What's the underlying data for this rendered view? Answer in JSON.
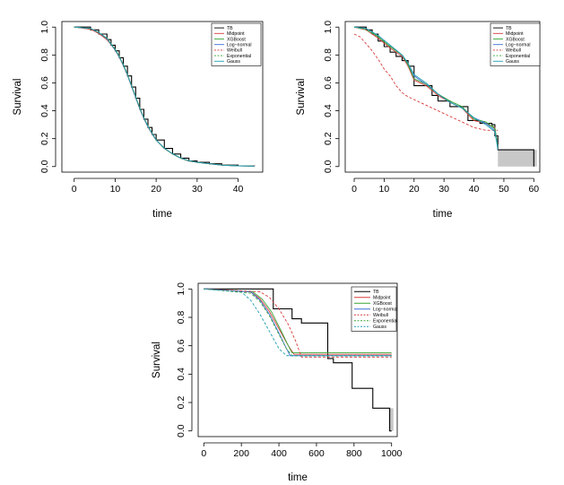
{
  "chart_data": [
    {
      "type": "line",
      "panel": "top-left",
      "xlabel": "time",
      "ylabel": "Survival",
      "xlim": [
        -3,
        46
      ],
      "ylim": [
        -0.04,
        1.04
      ],
      "xticks": [
        0,
        10,
        20,
        30,
        40
      ],
      "yticks": [
        0.0,
        0.2,
        0.4,
        0.6,
        0.8,
        1.0
      ],
      "legend_position": "top-right",
      "legend_layout": "short",
      "series": [
        {
          "name": "TB",
          "color": "#000000",
          "dash": "",
          "step": true,
          "x": [
            0,
            4,
            6,
            8,
            9,
            10,
            11,
            12,
            13,
            14,
            15,
            16,
            17,
            18,
            19,
            20,
            22,
            24,
            26,
            28,
            30,
            33,
            36,
            40,
            44
          ],
          "y": [
            1,
            0.98,
            0.95,
            0.91,
            0.87,
            0.83,
            0.78,
            0.72,
            0.65,
            0.57,
            0.49,
            0.41,
            0.34,
            0.28,
            0.23,
            0.19,
            0.13,
            0.09,
            0.06,
            0.04,
            0.03,
            0.02,
            0.01,
            0.005,
            0.003
          ]
        },
        {
          "name": "Midpoint",
          "color": "#d83a3a",
          "dash": "",
          "step": false,
          "x": [
            0,
            4,
            6,
            8,
            9,
            10,
            11,
            12,
            13,
            14,
            15,
            16,
            17,
            18,
            19,
            20,
            22,
            24,
            26,
            28,
            30,
            33,
            36,
            40,
            44
          ],
          "y": [
            1,
            0.985,
            0.955,
            0.91,
            0.875,
            0.835,
            0.785,
            0.725,
            0.655,
            0.575,
            0.495,
            0.415,
            0.345,
            0.285,
            0.235,
            0.19,
            0.13,
            0.09,
            0.06,
            0.04,
            0.03,
            0.02,
            0.01,
            0.005,
            0.003
          ]
        },
        {
          "name": "XGBoost",
          "color": "#3aa63a",
          "dash": "",
          "step": false,
          "x": [
            0,
            4,
            6,
            8,
            9,
            10,
            11,
            12,
            13,
            14,
            15,
            16,
            17,
            18,
            19,
            20,
            22,
            24,
            26,
            28,
            30,
            33,
            36,
            40,
            44
          ],
          "y": [
            1,
            0.99,
            0.96,
            0.92,
            0.88,
            0.84,
            0.79,
            0.73,
            0.66,
            0.58,
            0.5,
            0.42,
            0.35,
            0.29,
            0.24,
            0.19,
            0.13,
            0.09,
            0.06,
            0.04,
            0.03,
            0.02,
            0.01,
            0.005,
            0.003
          ]
        },
        {
          "name": "Log−normal",
          "color": "#3a6fd8",
          "dash": "",
          "step": false,
          "x": [
            0,
            4,
            6,
            8,
            9,
            10,
            11,
            12,
            13,
            14,
            15,
            16,
            17,
            18,
            19,
            20,
            22,
            24,
            26,
            28,
            30,
            33,
            36,
            40,
            44
          ],
          "y": [
            1,
            0.99,
            0.96,
            0.915,
            0.875,
            0.835,
            0.785,
            0.725,
            0.655,
            0.575,
            0.495,
            0.415,
            0.345,
            0.285,
            0.235,
            0.19,
            0.13,
            0.09,
            0.06,
            0.04,
            0.03,
            0.02,
            0.01,
            0.005,
            0.003
          ]
        },
        {
          "name": "Weibull",
          "color": "#d83a3a",
          "dash": "3,2",
          "step": false,
          "x": [
            0,
            4,
            6,
            8,
            9,
            10,
            11,
            12,
            13,
            14,
            15,
            16,
            17,
            18,
            19,
            20,
            22,
            24,
            26,
            28,
            30,
            33,
            36,
            40,
            44
          ],
          "y": [
            1,
            0.985,
            0.955,
            0.91,
            0.875,
            0.835,
            0.785,
            0.725,
            0.655,
            0.575,
            0.495,
            0.415,
            0.345,
            0.285,
            0.235,
            0.19,
            0.13,
            0.09,
            0.06,
            0.04,
            0.03,
            0.02,
            0.01,
            0.005,
            0.003
          ]
        },
        {
          "name": "Exponential",
          "color": "#3aa63a",
          "dash": "3,2",
          "step": false,
          "x": [
            0,
            4,
            6,
            8,
            9,
            10,
            11,
            12,
            13,
            14,
            15,
            16,
            17,
            18,
            19,
            20,
            22,
            24,
            26,
            28,
            30,
            33,
            36,
            40,
            44
          ],
          "y": [
            1,
            0.99,
            0.96,
            0.92,
            0.88,
            0.84,
            0.79,
            0.73,
            0.66,
            0.58,
            0.5,
            0.42,
            0.35,
            0.29,
            0.24,
            0.19,
            0.13,
            0.09,
            0.06,
            0.04,
            0.03,
            0.02,
            0.01,
            0.005,
            0.003
          ]
        },
        {
          "name": "Gauss",
          "color": "#1fa0b0",
          "dash": "",
          "step": false,
          "x": [
            0,
            4,
            6,
            8,
            9,
            10,
            11,
            12,
            13,
            14,
            15,
            16,
            17,
            18,
            19,
            20,
            22,
            24,
            26,
            28,
            30,
            33,
            36,
            40,
            44
          ],
          "y": [
            1,
            0.99,
            0.962,
            0.918,
            0.878,
            0.838,
            0.788,
            0.728,
            0.658,
            0.578,
            0.498,
            0.418,
            0.348,
            0.288,
            0.238,
            0.192,
            0.132,
            0.092,
            0.062,
            0.042,
            0.03,
            0.02,
            0.01,
            0.005,
            0.003
          ]
        }
      ]
    },
    {
      "type": "line",
      "panel": "top-right",
      "xlabel": "time",
      "ylabel": "Survival",
      "xlim": [
        -3,
        62
      ],
      "ylim": [
        -0.04,
        1.04
      ],
      "xticks": [
        0,
        10,
        20,
        30,
        40,
        50,
        60
      ],
      "yticks": [
        0.0,
        0.2,
        0.4,
        0.6,
        0.8,
        1.0
      ],
      "legend_position": "top-right",
      "legend_layout": "short",
      "band": {
        "x0": 48,
        "x1": 61,
        "y0": 0.0,
        "y1": 0.12,
        "color": "#c8c8c8"
      },
      "series": [
        {
          "name": "TB",
          "color": "#000000",
          "dash": "",
          "step": true,
          "x": [
            0,
            4,
            6,
            8,
            10,
            12,
            14,
            16,
            18,
            20,
            22,
            24,
            26,
            28,
            30,
            32,
            34,
            36,
            38,
            40,
            42,
            44,
            46,
            47,
            48,
            60
          ],
          "y": [
            1,
            0.98,
            0.95,
            0.9,
            0.86,
            0.82,
            0.79,
            0.76,
            0.72,
            0.58,
            0.58,
            0.58,
            0.51,
            0.47,
            0.47,
            0.43,
            0.43,
            0.43,
            0.33,
            0.33,
            0.31,
            0.31,
            0.3,
            0.22,
            0.12,
            0.0
          ]
        },
        {
          "name": "Midpoint",
          "color": "#d83a3a",
          "dash": "",
          "step": false,
          "x": [
            0,
            4,
            8,
            12,
            16,
            18,
            20,
            24,
            28,
            32,
            36,
            40,
            44,
            47,
            48
          ],
          "y": [
            1,
            0.98,
            0.92,
            0.85,
            0.79,
            0.72,
            0.62,
            0.58,
            0.51,
            0.46,
            0.42,
            0.33,
            0.31,
            0.28,
            0.13
          ]
        },
        {
          "name": "XGBoost",
          "color": "#3aa63a",
          "dash": "",
          "step": false,
          "x": [
            0,
            4,
            8,
            12,
            16,
            18,
            20,
            24,
            28,
            32,
            36,
            40,
            44,
            47,
            48
          ],
          "y": [
            1,
            0.99,
            0.93,
            0.86,
            0.8,
            0.73,
            0.63,
            0.59,
            0.52,
            0.47,
            0.43,
            0.34,
            0.32,
            0.27,
            0.14
          ]
        },
        {
          "name": "Log−normal",
          "color": "#3a6fd8",
          "dash": "",
          "step": false,
          "x": [
            0,
            4,
            8,
            12,
            16,
            18,
            20,
            24,
            28,
            32,
            36,
            40,
            44,
            47,
            48
          ],
          "y": [
            1,
            0.99,
            0.94,
            0.87,
            0.8,
            0.74,
            0.65,
            0.59,
            0.52,
            0.46,
            0.42,
            0.35,
            0.31,
            0.26,
            0.14
          ]
        },
        {
          "name": "Weibull",
          "color": "#d83a3a",
          "dash": "3,2",
          "step": false,
          "x": [
            0,
            2,
            4,
            6,
            8,
            10,
            12,
            14,
            16,
            18,
            20,
            22,
            24,
            26,
            28,
            30,
            32,
            34,
            36,
            38,
            40,
            42,
            44,
            46,
            48
          ],
          "y": [
            0.95,
            0.93,
            0.88,
            0.83,
            0.77,
            0.7,
            0.65,
            0.58,
            0.53,
            0.5,
            0.48,
            0.46,
            0.44,
            0.42,
            0.4,
            0.38,
            0.36,
            0.34,
            0.32,
            0.3,
            0.28,
            0.27,
            0.26,
            0.26,
            0.26
          ]
        },
        {
          "name": "Exponential",
          "color": "#3aa63a",
          "dash": "3,2",
          "step": false,
          "x": [
            0,
            4,
            8,
            12,
            16,
            18,
            20,
            24,
            28,
            32,
            36,
            40,
            44,
            47,
            48
          ],
          "y": [
            1,
            0.98,
            0.93,
            0.86,
            0.8,
            0.73,
            0.63,
            0.59,
            0.52,
            0.47,
            0.43,
            0.34,
            0.32,
            0.28,
            0.14
          ]
        },
        {
          "name": "Gauss",
          "color": "#1fa0b0",
          "dash": "",
          "step": false,
          "x": [
            0,
            4,
            8,
            12,
            16,
            18,
            20,
            24,
            28,
            32,
            36,
            40,
            44,
            47,
            48
          ],
          "y": [
            1,
            0.99,
            0.94,
            0.87,
            0.8,
            0.74,
            0.66,
            0.6,
            0.52,
            0.46,
            0.42,
            0.35,
            0.3,
            0.25,
            0.12
          ]
        }
      ]
    },
    {
      "type": "line",
      "panel": "bottom",
      "xlabel": "time",
      "ylabel": "Survival",
      "xlim": [
        -30,
        1030
      ],
      "ylim": [
        -0.04,
        1.04
      ],
      "xticks": [
        0,
        200,
        400,
        600,
        800,
        1000
      ],
      "yticks": [
        0.0,
        0.2,
        0.4,
        0.6,
        0.8,
        1.0
      ],
      "legend_position": "top-right",
      "legend_layout": "long",
      "band": {
        "x0": 985,
        "x1": 1010,
        "y0": 0.0,
        "y1": 0.16,
        "color": "#c8c8c8"
      },
      "series": [
        {
          "name": "TB",
          "color": "#000000",
          "dash": "",
          "step": true,
          "x": [
            0,
            370,
            470,
            520,
            660,
            690,
            790,
            900,
            990,
            1000
          ],
          "y": [
            1,
            0.86,
            0.79,
            0.76,
            0.51,
            0.48,
            0.3,
            0.16,
            0.0,
            0.0
          ]
        },
        {
          "name": "Midpoint",
          "color": "#d83a3a",
          "dash": "",
          "step": false,
          "x": [
            0,
            250,
            300,
            350,
            400,
            450,
            480,
            1000
          ],
          "y": [
            1,
            0.98,
            0.93,
            0.84,
            0.72,
            0.6,
            0.54,
            0.54
          ]
        },
        {
          "name": "XGBoost",
          "color": "#3aa63a",
          "dash": "",
          "step": false,
          "x": [
            0,
            260,
            310,
            360,
            410,
            450,
            470,
            1000
          ],
          "y": [
            1,
            0.98,
            0.93,
            0.84,
            0.71,
            0.6,
            0.55,
            0.55
          ]
        },
        {
          "name": "Log−normal",
          "color": "#3a6fd8",
          "dash": "",
          "step": false,
          "x": [
            0,
            250,
            300,
            350,
            400,
            440,
            460,
            1000
          ],
          "y": [
            1,
            0.98,
            0.92,
            0.82,
            0.69,
            0.58,
            0.53,
            0.53
          ]
        },
        {
          "name": "Weibull",
          "color": "#d83a3a",
          "dash": "3,2",
          "step": false,
          "x": [
            0,
            300,
            350,
            400,
            450,
            490,
            520,
            1000
          ],
          "y": [
            1,
            0.98,
            0.94,
            0.86,
            0.75,
            0.63,
            0.52,
            0.52
          ]
        },
        {
          "name": "Exponential",
          "color": "#3aa63a",
          "dash": "3,2",
          "step": false,
          "x": [
            0,
            250,
            300,
            350,
            400,
            440,
            470,
            1000
          ],
          "y": [
            1,
            0.97,
            0.91,
            0.81,
            0.68,
            0.58,
            0.53,
            0.53
          ]
        },
        {
          "name": "Gauss",
          "color": "#1fa0b0",
          "dash": "3,2",
          "step": false,
          "x": [
            0,
            200,
            250,
            300,
            350,
            400,
            440,
            1000
          ],
          "y": [
            1,
            0.98,
            0.92,
            0.82,
            0.7,
            0.58,
            0.53,
            0.53
          ]
        }
      ]
    }
  ]
}
